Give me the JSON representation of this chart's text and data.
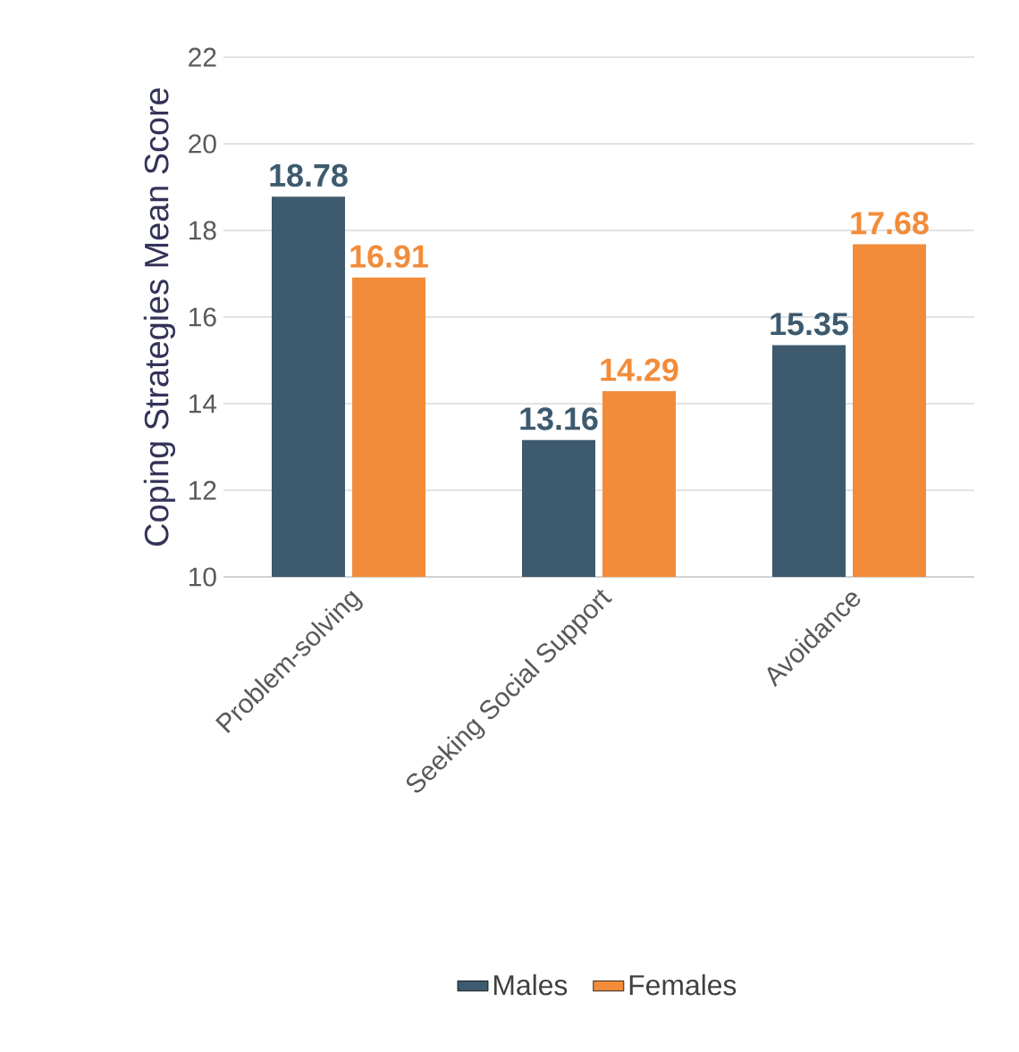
{
  "chart_data": {
    "type": "bar",
    "ylabel": "Coping Strategies Mean Score",
    "categories": [
      "Problem-solving",
      "Seeking Social Support",
      "Avoidance"
    ],
    "series": [
      {
        "name": "Males",
        "color": "#3d5a6e",
        "values": [
          18.78,
          13.16,
          15.35
        ]
      },
      {
        "name": "Females",
        "color": "#f28c3a",
        "values": [
          16.91,
          14.29,
          17.68
        ]
      }
    ],
    "ylim": [
      10,
      22
    ],
    "yticks": [
      10,
      12,
      14,
      16,
      18,
      20,
      22
    ],
    "grid": "y",
    "data_labels": true,
    "legend": "bottom"
  }
}
